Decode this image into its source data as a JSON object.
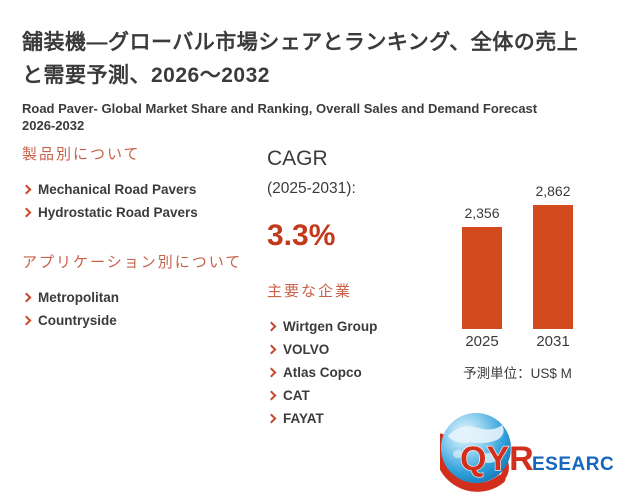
{
  "header": {
    "title_jp_lines": [
      "舗装機—グローバル市場シェアとランキング、全体の売上",
      "と需要予測、2026～2032"
    ],
    "title_en_lines": [
      "Road Paver- Global Market Share and Ranking, Overall Sales and Demand Forecast",
      "2026-2032"
    ]
  },
  "products_section": {
    "heading": "製品別について",
    "items": [
      "Mechanical Road Pavers",
      "Hydrostatic Road Pavers"
    ]
  },
  "applications_section": {
    "heading": "アプリケーション別について",
    "items": [
      "Metropolitan",
      "Countryside"
    ]
  },
  "cagr": {
    "label": "CAGR",
    "period": "(2025-2031):",
    "value": "3.3%"
  },
  "companies_section": {
    "heading": "主要な企業",
    "items": [
      "Wirtgen Group",
      "VOLVO",
      "Atlas Copco",
      "CAT",
      "FAYAT"
    ]
  },
  "chart_data": {
    "type": "bar",
    "categories": [
      "2025",
      "2031"
    ],
    "values": [
      2356,
      2862
    ],
    "value_labels": [
      "2,356",
      "2,862"
    ],
    "unit_note": "予測単位：US$ M",
    "ylim": [
      0,
      2862
    ],
    "bar_color": "#d34a1e",
    "grid": false,
    "legend": false
  },
  "logo": {
    "text_red": "QYR",
    "text_blue": "ESEARCH"
  },
  "colors": {
    "text_dark": "#3b3b3b",
    "heading_orange": "#c9614a",
    "bullet_orange": "#c7492b",
    "cagr_orange": "#c23a1c",
    "bar_orange": "#d34a1e",
    "logo_red": "#d2301c",
    "logo_blue": "#1566c0"
  }
}
